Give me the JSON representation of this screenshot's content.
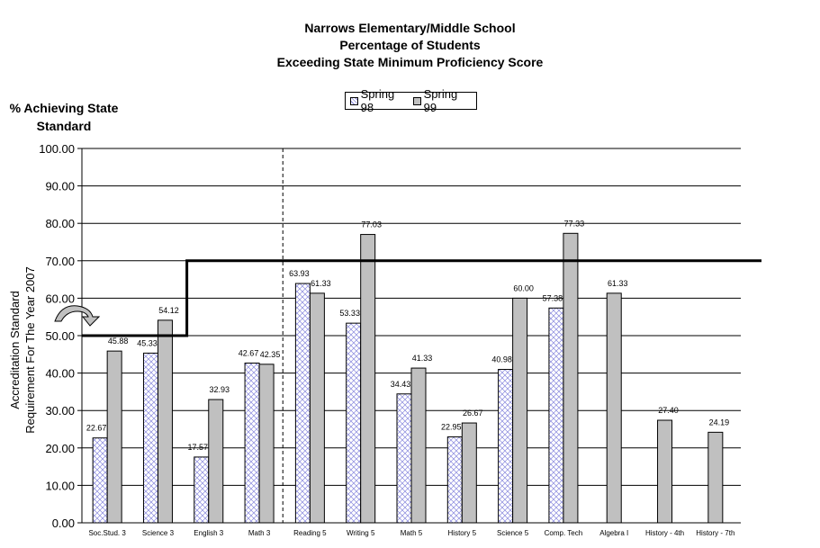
{
  "title_lines": [
    "Narrows Elementary/Middle School",
    "Percentage of Students",
    "Exceeding State Minimum Proficiency Score"
  ],
  "legend": {
    "spring98": "Spring 98",
    "spring99": "Spring 99"
  },
  "y_axis_title": "% Achieving State Standard",
  "side_annotation": [
    "Accreditation Standard",
    "Requirement For The Year 2007"
  ],
  "colors": {
    "spring98_fill": "#ffffff",
    "spring98_hatch": "#8888dd",
    "spring99_fill": "#c0c0c0",
    "grid": "#000000"
  },
  "chart_data": {
    "type": "bar",
    "title": "Narrows Elementary/Middle School Percentage of Students Exceeding State Minimum Proficiency Score",
    "xlabel": "",
    "ylabel": "% Achieving State Standard",
    "ylim": [
      0,
      100
    ],
    "yticks": [
      "0.00",
      "10.00",
      "20.00",
      "30.00",
      "40.00",
      "50.00",
      "60.00",
      "70.00",
      "80.00",
      "90.00",
      "100.00"
    ],
    "grid": true,
    "legend_position": "top",
    "categories": [
      "Soc.Stud. 3",
      "Science 3",
      "English 3",
      "Math 3",
      "Reading 5",
      "Writing 5",
      "Math 5",
      "History 5",
      "Science 5",
      "Comp. Tech",
      "Algebra I",
      "History - 4th",
      "History - 7th"
    ],
    "series": [
      {
        "name": "Spring 98",
        "values": [
          22.67,
          45.33,
          17.57,
          42.67,
          63.93,
          53.33,
          34.43,
          22.95,
          40.98,
          57.38,
          null,
          null,
          null
        ]
      },
      {
        "name": "Spring 99",
        "values": [
          45.88,
          54.12,
          32.93,
          42.35,
          61.33,
          77.03,
          41.33,
          26.67,
          60.0,
          77.33,
          61.33,
          27.4,
          24.19
        ]
      }
    ],
    "annotations": {
      "accreditation_standard": [
        {
          "from": "Soc.Stud. 3",
          "to": "English 3 (partial)",
          "value": 50
        },
        {
          "from": "English 3",
          "to": "end",
          "value": 70
        }
      ],
      "divider_after": "Math 3"
    }
  }
}
